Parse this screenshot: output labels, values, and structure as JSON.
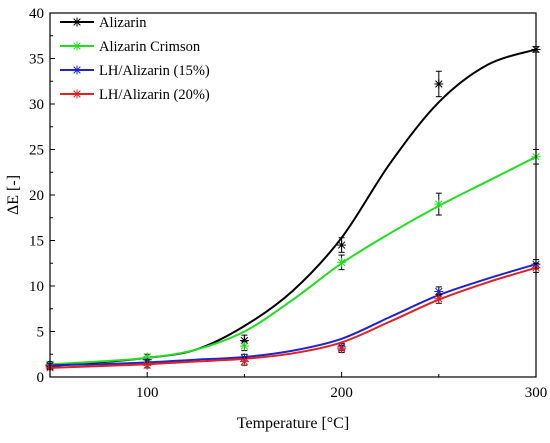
{
  "chart_data": {
    "type": "line",
    "xlabel": "Temperature [°C]",
    "ylabel": "ΔE [-]",
    "xlim": [
      50,
      300
    ],
    "ylim": [
      0,
      40
    ],
    "xticks": [
      100,
      200,
      300
    ],
    "yticks": [
      0,
      5,
      10,
      15,
      20,
      25,
      30,
      35,
      40
    ],
    "legend_position": "top-left",
    "grid": false,
    "series": [
      {
        "name": "Alizarin",
        "color": "#000000",
        "points": [
          {
            "x": 50,
            "y": 1.2,
            "err": 0.3
          },
          {
            "x": 100,
            "y": 1.9,
            "err": 0.3
          },
          {
            "x": 150,
            "y": 4.0,
            "err": 0.6
          },
          {
            "x": 200,
            "y": 14.5,
            "err": 0.8
          },
          {
            "x": 250,
            "y": 32.2,
            "err": 1.4
          },
          {
            "x": 300,
            "y": 36.0,
            "err": 0.3
          }
        ],
        "curve": [
          [
            50,
            1.2
          ],
          [
            75,
            1.6
          ],
          [
            100,
            2.1
          ],
          [
            125,
            3.0
          ],
          [
            150,
            5.6
          ],
          [
            175,
            9.5
          ],
          [
            200,
            15.3
          ],
          [
            225,
            23.5
          ],
          [
            250,
            30.2
          ],
          [
            275,
            34.3
          ],
          [
            300,
            36.0
          ]
        ]
      },
      {
        "name": "Alizarin Crimson",
        "color": "#22dd22",
        "points": [
          {
            "x": 50,
            "y": 1.4,
            "err": 0.3
          },
          {
            "x": 100,
            "y": 2.2,
            "err": 0.3
          },
          {
            "x": 150,
            "y": 3.4,
            "err": 0.5
          },
          {
            "x": 200,
            "y": 12.6,
            "err": 0.8
          },
          {
            "x": 250,
            "y": 19.0,
            "err": 1.2
          },
          {
            "x": 300,
            "y": 24.2,
            "err": 0.8
          }
        ],
        "curve": [
          [
            50,
            1.4
          ],
          [
            75,
            1.7
          ],
          [
            100,
            2.1
          ],
          [
            125,
            3.0
          ],
          [
            150,
            5.0
          ],
          [
            175,
            8.5
          ],
          [
            200,
            12.5
          ],
          [
            225,
            15.8
          ],
          [
            250,
            18.8
          ],
          [
            275,
            21.5
          ],
          [
            300,
            24.2
          ]
        ]
      },
      {
        "name": "LH/Alizarin (15%)",
        "color": "#2222cc",
        "points": [
          {
            "x": 50,
            "y": 1.3,
            "err": 0.2
          },
          {
            "x": 100,
            "y": 1.6,
            "err": 0.3
          },
          {
            "x": 150,
            "y": 2.1,
            "err": 0.4
          },
          {
            "x": 200,
            "y": 3.3,
            "err": 0.4
          },
          {
            "x": 250,
            "y": 9.4,
            "err": 0.5
          },
          {
            "x": 300,
            "y": 12.4,
            "err": 0.5
          }
        ],
        "curve": [
          [
            50,
            1.3
          ],
          [
            75,
            1.4
          ],
          [
            100,
            1.6
          ],
          [
            125,
            1.9
          ],
          [
            150,
            2.2
          ],
          [
            175,
            2.9
          ],
          [
            200,
            4.2
          ],
          [
            225,
            6.6
          ],
          [
            250,
            9.0
          ],
          [
            275,
            10.8
          ],
          [
            300,
            12.4
          ]
        ]
      },
      {
        "name": "LH/Alizarin (20%)",
        "color": "#dd2222",
        "points": [
          {
            "x": 50,
            "y": 1.0,
            "err": 0.2
          },
          {
            "x": 100,
            "y": 1.3,
            "err": 0.3
          },
          {
            "x": 150,
            "y": 1.7,
            "err": 0.4
          },
          {
            "x": 200,
            "y": 3.1,
            "err": 0.4
          },
          {
            "x": 250,
            "y": 8.6,
            "err": 0.5
          },
          {
            "x": 300,
            "y": 12.0,
            "err": 0.5
          }
        ],
        "curve": [
          [
            50,
            1.0
          ],
          [
            75,
            1.2
          ],
          [
            100,
            1.4
          ],
          [
            125,
            1.7
          ],
          [
            150,
            2.0
          ],
          [
            175,
            2.6
          ],
          [
            200,
            3.8
          ],
          [
            225,
            6.1
          ],
          [
            250,
            8.5
          ],
          [
            275,
            10.4
          ],
          [
            300,
            12.0
          ]
        ]
      }
    ]
  }
}
